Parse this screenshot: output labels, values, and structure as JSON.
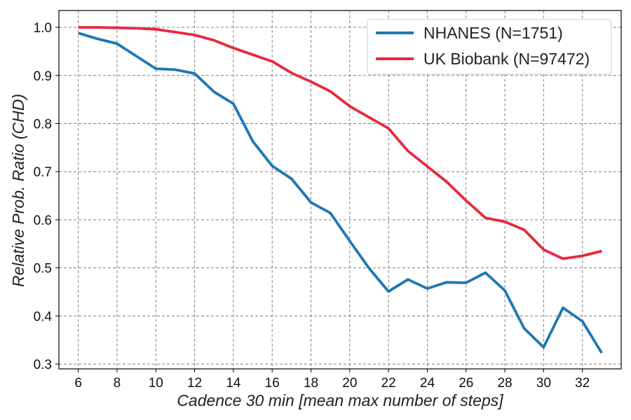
{
  "chart_data": {
    "type": "line",
    "xlabel": "Cadence 30 min [mean max number of steps]",
    "ylabel": "Relative Prob. Ratio (CHD)",
    "xlim": [
      5,
      34
    ],
    "ylim": [
      0.29,
      1.035
    ],
    "xticks": [
      6,
      8,
      10,
      12,
      14,
      16,
      18,
      20,
      22,
      24,
      26,
      28,
      30,
      32
    ],
    "yticks": [
      0.3,
      0.4,
      0.5,
      0.6,
      0.7,
      0.8,
      0.9,
      1.0
    ],
    "ytick_labels": [
      "0.3",
      "0.4",
      "0.5",
      "0.6",
      "0.7",
      "0.8",
      "0.9",
      "1.0"
    ],
    "grid": true,
    "legend_position": "top-right",
    "x": [
      6,
      7,
      8,
      9,
      10,
      11,
      12,
      13,
      14,
      15,
      16,
      17,
      18,
      19,
      20,
      21,
      22,
      23,
      24,
      25,
      26,
      27,
      28,
      29,
      30,
      31,
      32,
      33
    ],
    "series": [
      {
        "name": "NHANES (N=1751)",
        "color": "#1f77b4",
        "values": [
          0.988,
          0.976,
          0.966,
          0.94,
          0.914,
          0.912,
          0.904,
          0.866,
          0.841,
          0.763,
          0.712,
          0.685,
          0.636,
          0.614,
          0.556,
          0.499,
          0.451,
          0.476,
          0.457,
          0.47,
          0.469,
          0.49,
          0.453,
          0.374,
          0.335,
          0.417,
          0.389,
          0.323
        ]
      },
      {
        "name": "UK Biobank (N=97472)",
        "color": "#e8283f",
        "values": [
          1.0,
          1.0,
          0.999,
          0.998,
          0.996,
          0.99,
          0.984,
          0.973,
          0.957,
          0.943,
          0.929,
          0.905,
          0.887,
          0.867,
          0.836,
          0.813,
          0.79,
          0.743,
          0.711,
          0.679,
          0.64,
          0.604,
          0.596,
          0.579,
          0.538,
          0.519,
          0.525,
          0.535
        ]
      }
    ]
  }
}
